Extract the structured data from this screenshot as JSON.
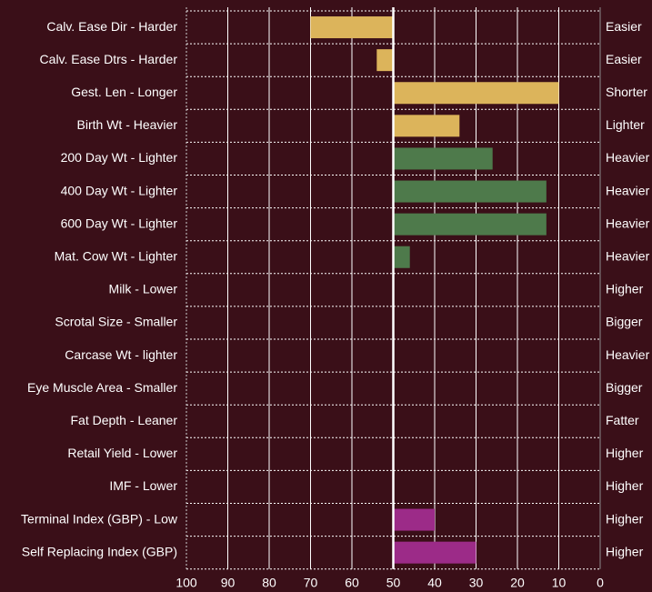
{
  "chart_data": {
    "type": "bar",
    "orientation": "horizontal",
    "categories": [
      "Calv. Ease Dir - Harder",
      "Calv. Ease Dtrs - Harder",
      "Gest. Len - Longer",
      "Birth Wt - Heavier",
      "200 Day Wt - Lighter",
      "400 Day Wt - Lighter",
      "600 Day Wt - Lighter",
      "Mat. Cow Wt - Lighter",
      "Milk - Lower",
      "Scrotal Size - Smaller",
      "Carcase Wt - lighter",
      "Eye Muscle Area - Smaller",
      "Fat Depth - Leaner",
      "Retail Yield - Lower",
      "IMF - Lower",
      "Terminal Index (GBP) -  Low",
      "Self Replacing Index (GBP)"
    ],
    "right_labels": [
      "Easier",
      "Easier",
      "Shorter",
      "Lighter",
      "Heavier",
      "Heavier",
      "Heavier",
      "Heavier",
      "Higher",
      "Bigger",
      "Heavier",
      "Bigger",
      "Fatter",
      "Higher",
      "Higher",
      "Higher",
      "Higher"
    ],
    "values": [
      70,
      54,
      10,
      34,
      26,
      13,
      13,
      46,
      null,
      null,
      null,
      null,
      null,
      null,
      null,
      40,
      30
    ],
    "colors": [
      "#dcb45b",
      "#dcb45b",
      "#dcb45b",
      "#dcb45b",
      "#4e7a4b",
      "#4e7a4b",
      "#4e7a4b",
      "#4e7a4b",
      "#4e7a4b",
      "#4e7a4b",
      "#4e7a4b",
      "#4e7a4b",
      "#4e7a4b",
      "#4e7a4b",
      "#4e7a4b",
      "#9c2b88",
      "#9c2b88"
    ],
    "baseline": 50,
    "xlim": [
      100,
      0
    ],
    "xticks": [
      100,
      90,
      80,
      70,
      60,
      50,
      40,
      30,
      20,
      10,
      0
    ],
    "grid": true
  }
}
